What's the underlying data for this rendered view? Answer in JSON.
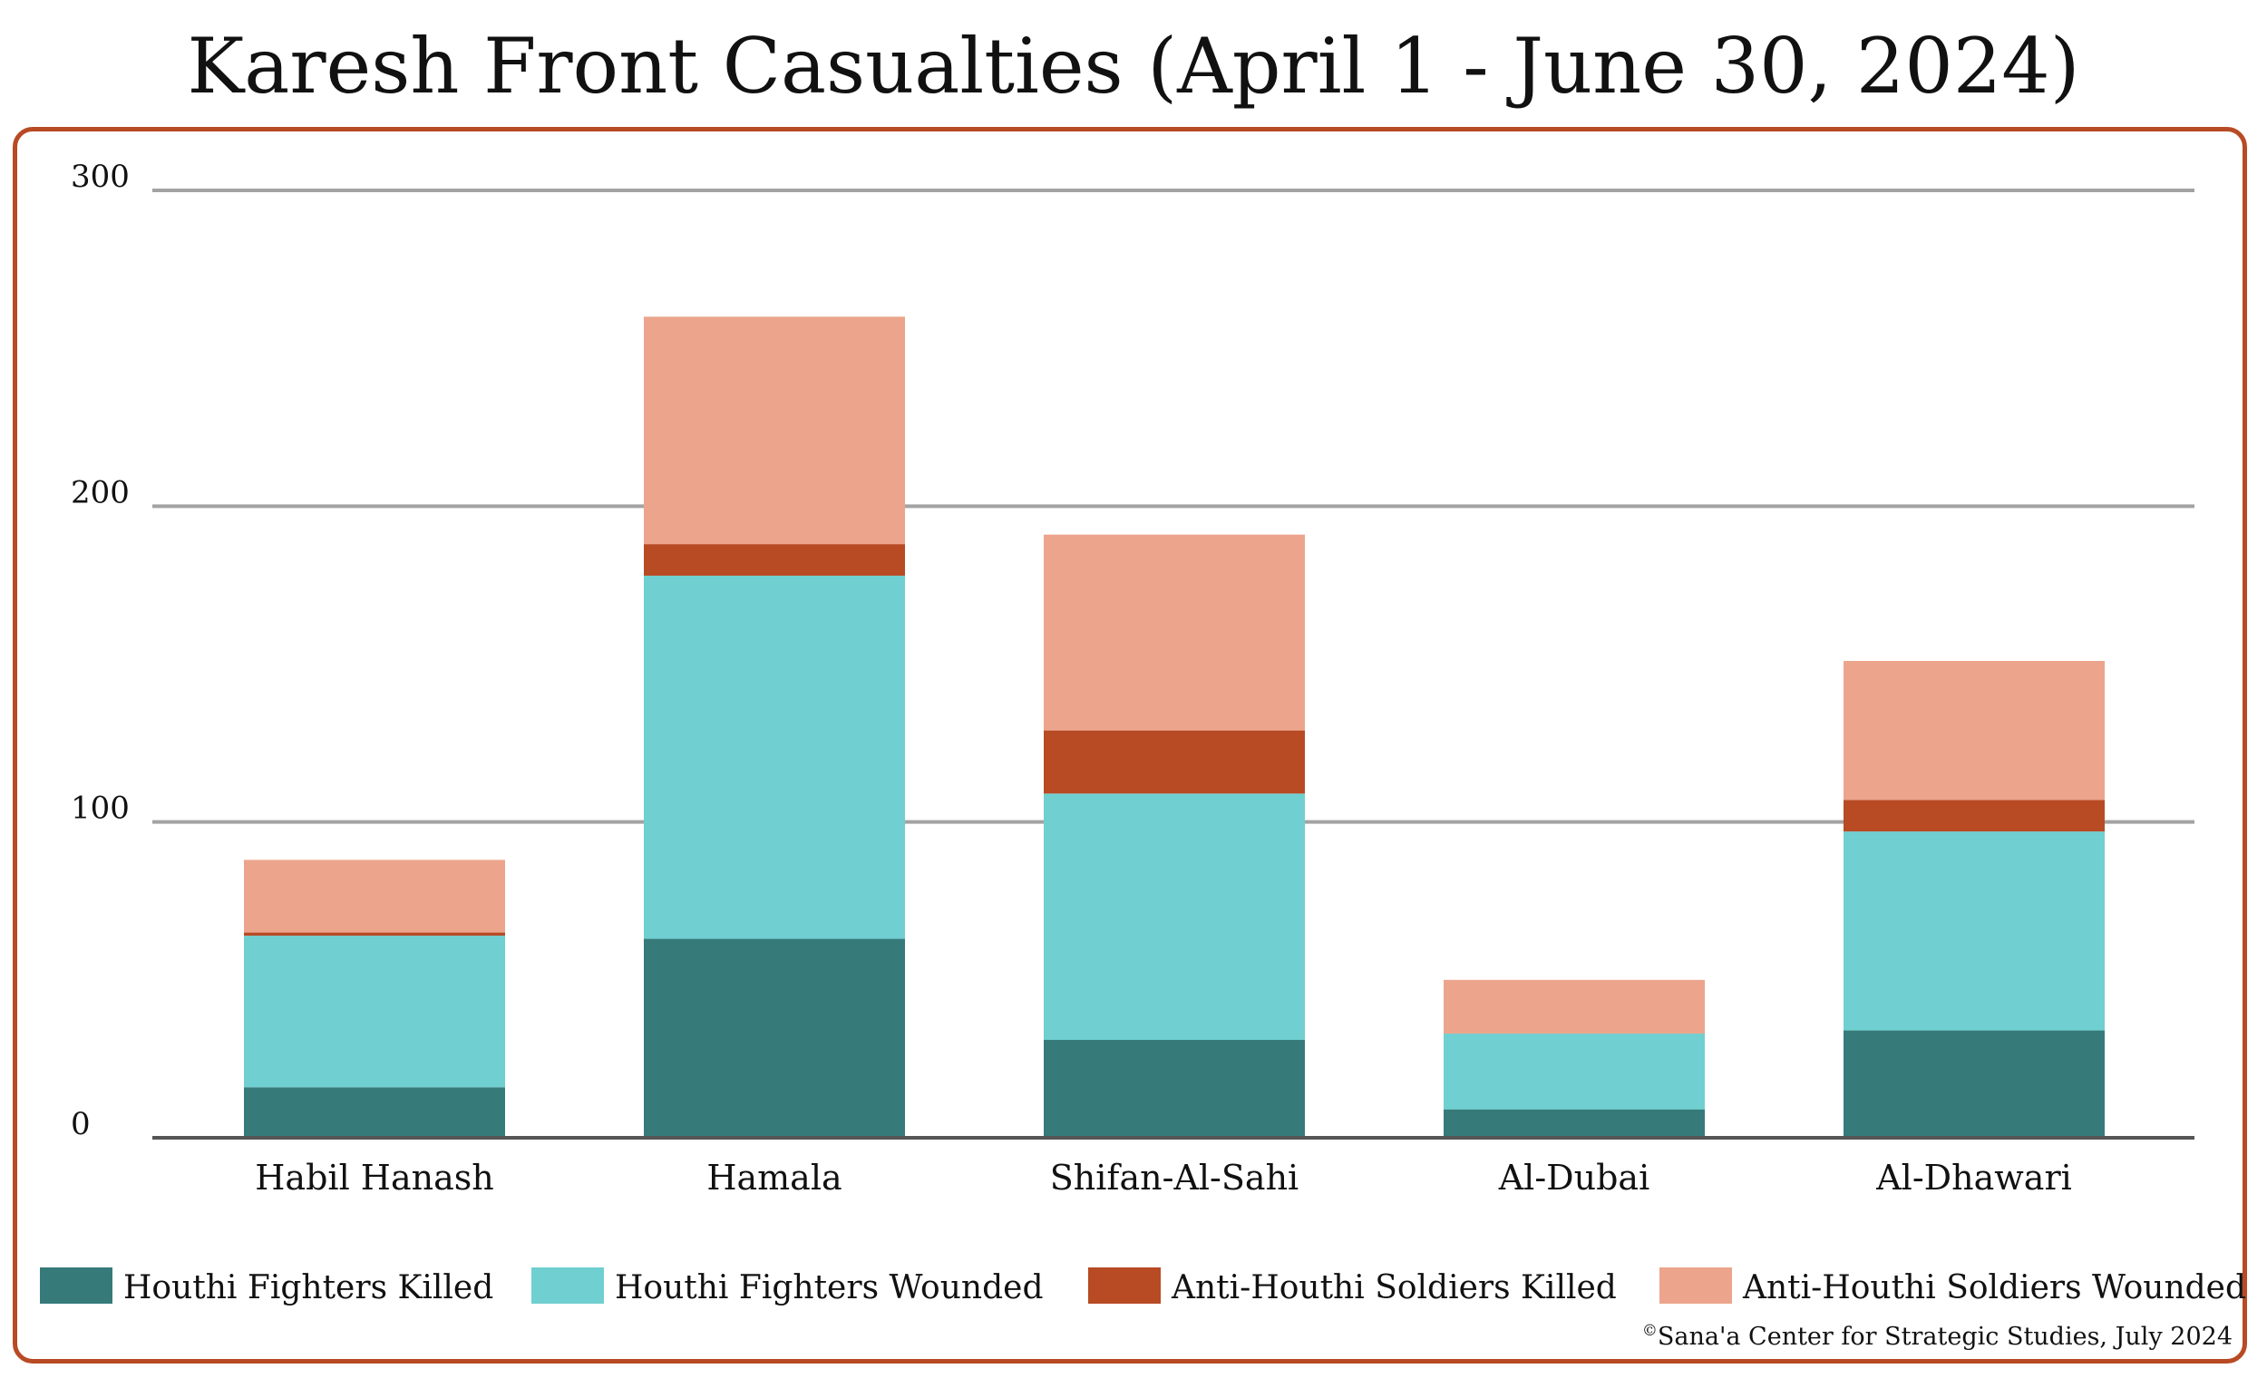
{
  "chart_data": {
    "type": "bar",
    "stacked": true,
    "title": "Karesh Front Casualties (April 1 - June 30, 2024)",
    "categories": [
      "Habil Hanash",
      "Hamala",
      "Shifan-Al-Sahi",
      "Al-Dubai",
      "Al-Dhawari"
    ],
    "series": [
      {
        "name": "Houthi Fighters Killed",
        "color": "#367a7a",
        "values": [
          16,
          63,
          31,
          9,
          34
        ]
      },
      {
        "name": "Houthi Fighters Wounded",
        "color": "#70cfd0",
        "values": [
          48,
          115,
          78,
          24,
          63
        ]
      },
      {
        "name": "Anti-Houthi Soldiers Killed",
        "color": "#b84a24",
        "values": [
          1,
          10,
          20,
          0,
          10
        ]
      },
      {
        "name": "Anti-Houthi Soldiers Wounded",
        "color": "#eca58c",
        "values": [
          23,
          72,
          62,
          17,
          44
        ]
      }
    ],
    "yticks": [
      "0",
      "100",
      "200",
      "300"
    ],
    "ylim": [
      0,
      300
    ],
    "grid": true,
    "legend": "bottom",
    "xlabel": "",
    "ylabel": ""
  },
  "source": {
    "symbol": "©",
    "text": "Sana'a Center for Strategic Studies, July 2024"
  }
}
